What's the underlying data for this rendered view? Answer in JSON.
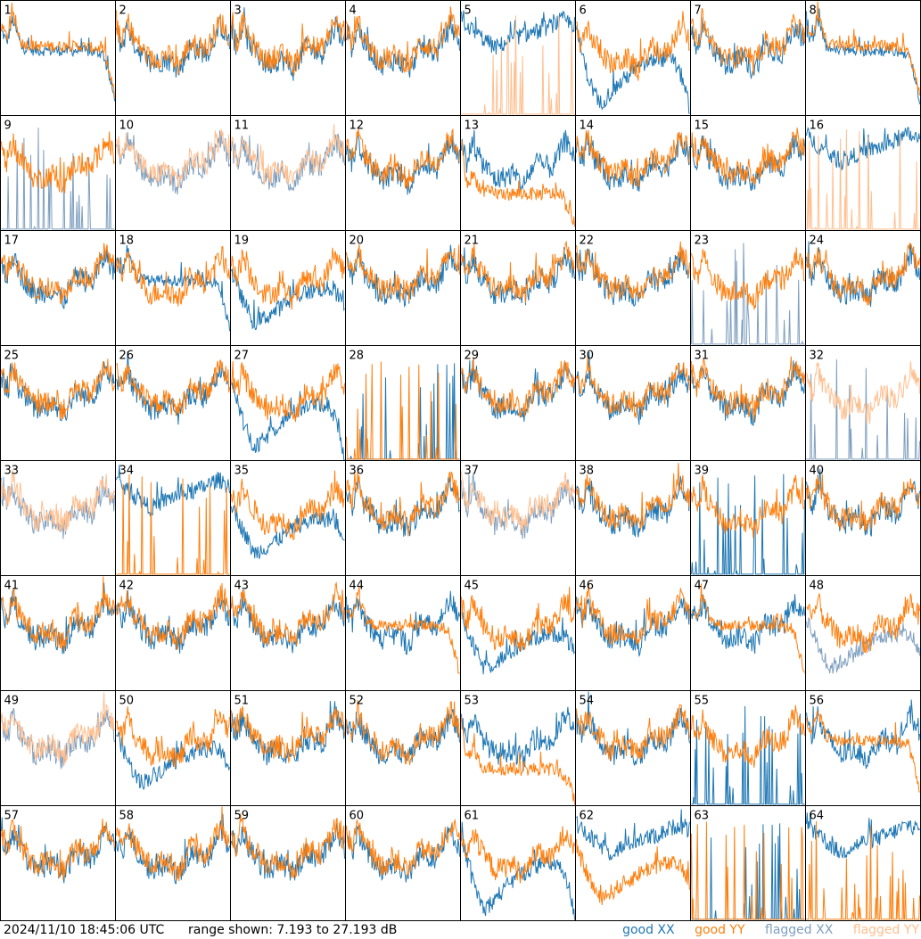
{
  "chart_data": {
    "type": "line",
    "timestamp": "2024/11/10 18:45:06 UTC",
    "range_text": "range shown: 7.193 to 27.193 dB",
    "ylim": [
      7.193,
      27.193
    ],
    "grid": "8x8",
    "legend": {
      "placement": "bottom-right",
      "entries": [
        {
          "label": "good XX",
          "color": "#1f77b4"
        },
        {
          "label": "good YY",
          "color": "#ff7f0e"
        },
        {
          "label": "flagged XX",
          "color": "#7f9fbf"
        },
        {
          "label": "flagged YY",
          "color": "#ffbf8f"
        }
      ]
    },
    "series_shapes": {
      "typical": {
        "points": [
          [
            0,
            22
          ],
          [
            0.05,
            19
          ],
          [
            0.1,
            23
          ],
          [
            0.15,
            20
          ],
          [
            0.3,
            16
          ],
          [
            0.45,
            17
          ],
          [
            0.55,
            15
          ],
          [
            0.65,
            19
          ],
          [
            0.8,
            18
          ],
          [
            0.92,
            23
          ],
          [
            1,
            20
          ]
        ],
        "noise": 2
      },
      "plateau": {
        "points": [
          [
            0,
            22
          ],
          [
            0.05,
            20
          ],
          [
            0.1,
            24
          ],
          [
            0.18,
            19
          ],
          [
            0.3,
            18.5
          ],
          [
            0.5,
            18.5
          ],
          [
            0.7,
            18.5
          ],
          [
            0.9,
            18
          ],
          [
            0.95,
            14
          ],
          [
            1,
            10
          ]
        ],
        "noise": 1
      },
      "low_plateau": {
        "points": [
          [
            0,
            22
          ],
          [
            0.05,
            15
          ],
          [
            0.1,
            17
          ],
          [
            0.18,
            14
          ],
          [
            0.35,
            13.5
          ],
          [
            0.6,
            13.5
          ],
          [
            0.85,
            13.5
          ],
          [
            0.95,
            11
          ],
          [
            1,
            8
          ]
        ],
        "noise": 1.2
      },
      "dip": {
        "points": [
          [
            0,
            20
          ],
          [
            0.08,
            16
          ],
          [
            0.2,
            11
          ],
          [
            0.3,
            12
          ],
          [
            0.45,
            14
          ],
          [
            0.6,
            16
          ],
          [
            0.75,
            17
          ],
          [
            0.9,
            17
          ],
          [
            1,
            14
          ]
        ],
        "noise": 1.5
      },
      "collapse": {
        "points": [
          [
            0,
            22
          ],
          [
            0.1,
            14
          ],
          [
            0.2,
            9
          ],
          [
            0.3,
            11
          ],
          [
            0.5,
            15
          ],
          [
            0.7,
            17
          ],
          [
            0.85,
            17
          ],
          [
            0.95,
            13
          ],
          [
            1,
            7.5
          ]
        ],
        "noise": 1.5
      },
      "high": {
        "points": [
          [
            0,
            24
          ],
          [
            0.1,
            22
          ],
          [
            0.3,
            19
          ],
          [
            0.5,
            21
          ],
          [
            0.7,
            22
          ],
          [
            0.9,
            24
          ],
          [
            1,
            23
          ]
        ],
        "noise": 1.5
      },
      "spikes": {
        "points": [
          [
            0,
            7.3
          ],
          [
            1,
            7.3
          ]
        ],
        "noise": 0,
        "spikes": true
      }
    },
    "panels": [
      {
        "label": "1",
        "xx": "plateau",
        "yy": "plateau",
        "flag_xx": false,
        "flag_yy": false
      },
      {
        "label": "2",
        "xx": "typical",
        "yy": "typical",
        "flag_xx": false,
        "flag_yy": false
      },
      {
        "label": "3",
        "xx": "typical",
        "yy": "typical",
        "flag_xx": false,
        "flag_yy": false
      },
      {
        "label": "4",
        "xx": "typical",
        "yy": "typical",
        "flag_xx": false,
        "flag_yy": false
      },
      {
        "label": "5",
        "xx": "high",
        "yy": "spikes",
        "flag_xx": false,
        "flag_yy": true
      },
      {
        "label": "6",
        "xx": "collapse",
        "yy": "typical",
        "flag_xx": false,
        "flag_yy": false
      },
      {
        "label": "7",
        "xx": "typical",
        "yy": "typical",
        "flag_xx": false,
        "flag_yy": false
      },
      {
        "label": "8",
        "xx": "plateau",
        "yy": "plateau",
        "flag_xx": false,
        "flag_yy": false
      },
      {
        "label": "9",
        "xx": "spikes",
        "yy": "typical",
        "flag_xx": true,
        "flag_yy": false
      },
      {
        "label": "10",
        "xx": "typical",
        "yy": "typical",
        "flag_xx": true,
        "flag_yy": true
      },
      {
        "label": "11",
        "xx": "typical",
        "yy": "typical",
        "flag_xx": true,
        "flag_yy": true
      },
      {
        "label": "12",
        "xx": "typical",
        "yy": "typical",
        "flag_xx": false,
        "flag_yy": false
      },
      {
        "label": "13",
        "xx": "typical",
        "yy": "low_plateau",
        "flag_xx": false,
        "flag_yy": false
      },
      {
        "label": "14",
        "xx": "typical",
        "yy": "typical",
        "flag_xx": false,
        "flag_yy": false
      },
      {
        "label": "15",
        "xx": "typical",
        "yy": "typical",
        "flag_xx": false,
        "flag_yy": false
      },
      {
        "label": "16",
        "xx": "high",
        "yy": "spikes",
        "flag_xx": false,
        "flag_yy": true
      },
      {
        "label": "17",
        "xx": "typical",
        "yy": "typical",
        "flag_xx": false,
        "flag_yy": false
      },
      {
        "label": "18",
        "xx": "plateau",
        "yy": "typical",
        "flag_xx": false,
        "flag_yy": false
      },
      {
        "label": "19",
        "xx": "dip",
        "yy": "typical",
        "flag_xx": false,
        "flag_yy": false
      },
      {
        "label": "20",
        "xx": "typical",
        "yy": "typical",
        "flag_xx": false,
        "flag_yy": false
      },
      {
        "label": "21",
        "xx": "typical",
        "yy": "typical",
        "flag_xx": false,
        "flag_yy": false
      },
      {
        "label": "22",
        "xx": "typical",
        "yy": "typical",
        "flag_xx": false,
        "flag_yy": false
      },
      {
        "label": "23",
        "xx": "spikes",
        "yy": "typical",
        "flag_xx": true,
        "flag_yy": false
      },
      {
        "label": "24",
        "xx": "typical",
        "yy": "typical",
        "flag_xx": false,
        "flag_yy": false
      },
      {
        "label": "25",
        "xx": "typical",
        "yy": "typical",
        "flag_xx": false,
        "flag_yy": false
      },
      {
        "label": "26",
        "xx": "typical",
        "yy": "typical",
        "flag_xx": false,
        "flag_yy": false
      },
      {
        "label": "27",
        "xx": "collapse",
        "yy": "typical",
        "flag_xx": false,
        "flag_yy": false
      },
      {
        "label": "28",
        "xx": "spikes",
        "yy": "spikes",
        "flag_xx": false,
        "flag_yy": false
      },
      {
        "label": "29",
        "xx": "typical",
        "yy": "typical",
        "flag_xx": false,
        "flag_yy": false
      },
      {
        "label": "30",
        "xx": "typical",
        "yy": "typical",
        "flag_xx": false,
        "flag_yy": false
      },
      {
        "label": "31",
        "xx": "typical",
        "yy": "typical",
        "flag_xx": false,
        "flag_yy": false
      },
      {
        "label": "32",
        "xx": "spikes",
        "yy": "typical",
        "flag_xx": true,
        "flag_yy": true
      },
      {
        "label": "33",
        "xx": "typical",
        "yy": "typical",
        "flag_xx": true,
        "flag_yy": true
      },
      {
        "label": "34",
        "xx": "high",
        "yy": "spikes",
        "flag_xx": false,
        "flag_yy": false
      },
      {
        "label": "35",
        "xx": "dip",
        "yy": "typical",
        "flag_xx": false,
        "flag_yy": false
      },
      {
        "label": "36",
        "xx": "typical",
        "yy": "typical",
        "flag_xx": false,
        "flag_yy": false
      },
      {
        "label": "37",
        "xx": "typical",
        "yy": "typical",
        "flag_xx": true,
        "flag_yy": true
      },
      {
        "label": "38",
        "xx": "typical",
        "yy": "typical",
        "flag_xx": false,
        "flag_yy": false
      },
      {
        "label": "39",
        "xx": "spikes",
        "yy": "typical",
        "flag_xx": false,
        "flag_yy": false
      },
      {
        "label": "40",
        "xx": "typical",
        "yy": "typical",
        "flag_xx": false,
        "flag_yy": false
      },
      {
        "label": "41",
        "xx": "typical",
        "yy": "typical",
        "flag_xx": false,
        "flag_yy": false
      },
      {
        "label": "42",
        "xx": "typical",
        "yy": "typical",
        "flag_xx": false,
        "flag_yy": false
      },
      {
        "label": "43",
        "xx": "typical",
        "yy": "typical",
        "flag_xx": false,
        "flag_yy": false
      },
      {
        "label": "44",
        "xx": "typical",
        "yy": "plateau",
        "flag_xx": false,
        "flag_yy": false
      },
      {
        "label": "45",
        "xx": "dip",
        "yy": "typical",
        "flag_xx": false,
        "flag_yy": false
      },
      {
        "label": "46",
        "xx": "typical",
        "yy": "typical",
        "flag_xx": false,
        "flag_yy": false
      },
      {
        "label": "47",
        "xx": "typical",
        "yy": "plateau",
        "flag_xx": false,
        "flag_yy": false
      },
      {
        "label": "48",
        "xx": "dip",
        "yy": "typical",
        "flag_xx": true,
        "flag_yy": false
      },
      {
        "label": "49",
        "xx": "typical",
        "yy": "typical",
        "flag_xx": true,
        "flag_yy": true
      },
      {
        "label": "50",
        "xx": "dip",
        "yy": "typical",
        "flag_xx": false,
        "flag_yy": false
      },
      {
        "label": "51",
        "xx": "typical",
        "yy": "typical",
        "flag_xx": false,
        "flag_yy": false
      },
      {
        "label": "52",
        "xx": "typical",
        "yy": "typical",
        "flag_xx": false,
        "flag_yy": false
      },
      {
        "label": "53",
        "xx": "typical",
        "yy": "low_plateau",
        "flag_xx": false,
        "flag_yy": false
      },
      {
        "label": "54",
        "xx": "typical",
        "yy": "typical",
        "flag_xx": false,
        "flag_yy": false
      },
      {
        "label": "55",
        "xx": "spikes",
        "yy": "typical",
        "flag_xx": false,
        "flag_yy": false
      },
      {
        "label": "56",
        "xx": "typical",
        "yy": "plateau",
        "flag_xx": false,
        "flag_yy": false
      },
      {
        "label": "57",
        "xx": "typical",
        "yy": "typical",
        "flag_xx": false,
        "flag_yy": false
      },
      {
        "label": "58",
        "xx": "typical",
        "yy": "typical",
        "flag_xx": false,
        "flag_yy": false
      },
      {
        "label": "59",
        "xx": "typical",
        "yy": "typical",
        "flag_xx": false,
        "flag_yy": false
      },
      {
        "label": "60",
        "xx": "typical",
        "yy": "typical",
        "flag_xx": false,
        "flag_yy": false
      },
      {
        "label": "61",
        "xx": "collapse",
        "yy": "typical",
        "flag_xx": false,
        "flag_yy": false
      },
      {
        "label": "62",
        "xx": "high",
        "yy": "dip",
        "flag_xx": false,
        "flag_yy": false
      },
      {
        "label": "63",
        "xx": "spikes",
        "yy": "spikes",
        "flag_xx": false,
        "flag_yy": false
      },
      {
        "label": "64",
        "xx": "high",
        "yy": "spikes",
        "flag_xx": false,
        "flag_yy": false
      }
    ]
  }
}
